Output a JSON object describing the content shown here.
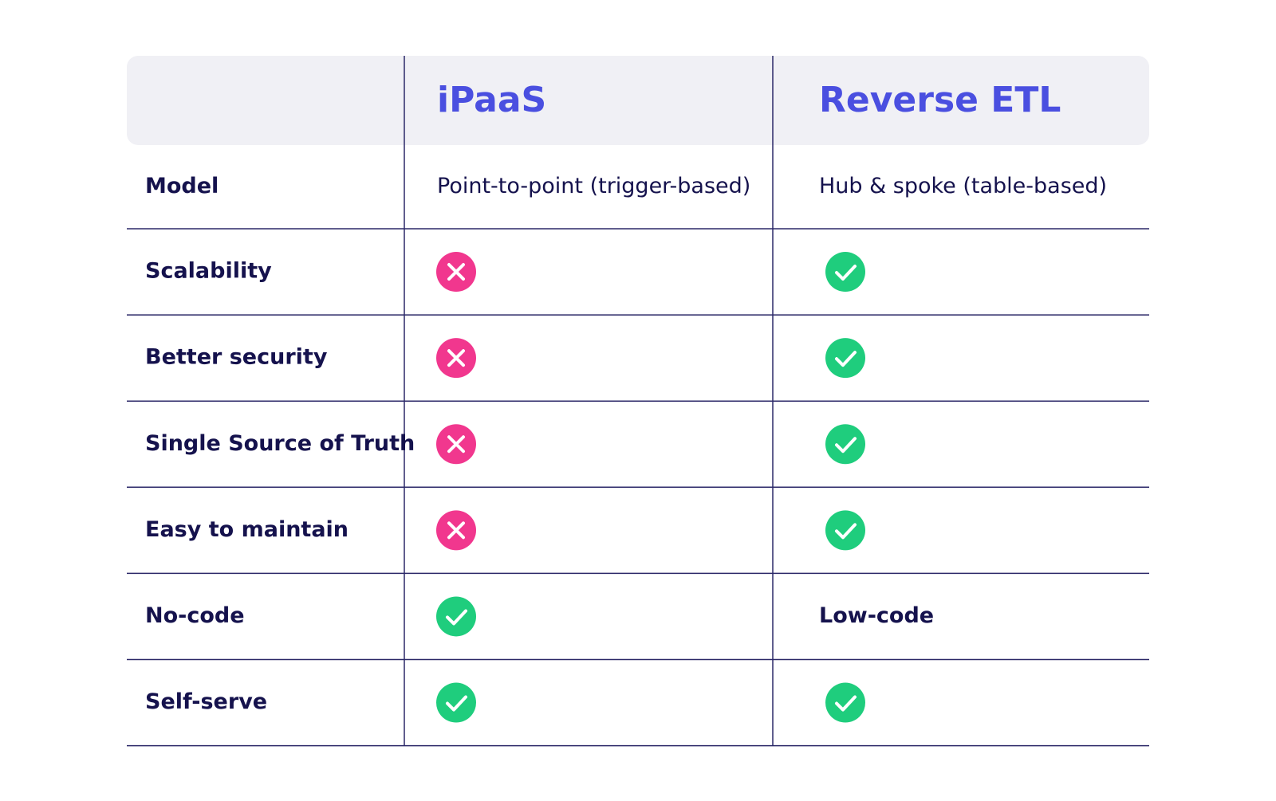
{
  "table": {
    "columns": [
      "iPaaS",
      "Reverse ETL"
    ],
    "rows": [
      {
        "label": "Model",
        "cells": [
          "Point-to-point (trigger-based)",
          "Hub & spoke (table-based)"
        ]
      },
      {
        "label": "Scalability",
        "cells": [
          false,
          true
        ]
      },
      {
        "label": "Better security",
        "cells": [
          false,
          true
        ]
      },
      {
        "label": "Single Source of Truth",
        "cells": [
          false,
          true
        ]
      },
      {
        "label": "Easy to maintain",
        "cells": [
          false,
          true
        ]
      },
      {
        "label": "No-code",
        "cells": [
          true,
          "Low-code"
        ]
      },
      {
        "label": "Self-serve",
        "cells": [
          true,
          true
        ]
      }
    ]
  }
}
